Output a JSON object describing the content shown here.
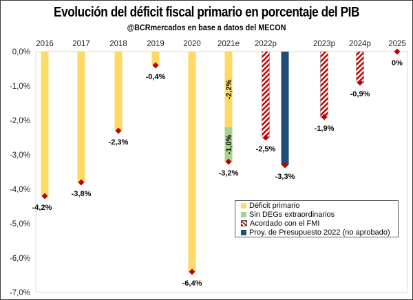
{
  "chart_data": {
    "type": "bar",
    "title": "Evolución del déficit fiscal primario en porcentaje del PIB",
    "subtitle": "@BCRmercados en base a datos del MECON",
    "ylim": [
      -7,
      0
    ],
    "yticks": [
      0,
      -1,
      -2,
      -3,
      -4,
      -5,
      -6,
      -7
    ],
    "ytick_labels": [
      "0,0%",
      "-1,0%",
      "-2,0%",
      "-3,0%",
      "-4,0%",
      "-5,0%",
      "-6,0%",
      "-7,0%"
    ],
    "categories": [
      "2016",
      "2017",
      "2018",
      "2019",
      "2020",
      "2021e",
      "2022p",
      "2023p",
      "2024p",
      "2025"
    ],
    "legend": [
      {
        "name": "Déficit primario",
        "color": "#FFD966",
        "style": "solid"
      },
      {
        "name": "Sin DEGs extraordinarios",
        "color": "#A9D18E",
        "style": "solid"
      },
      {
        "name": "Acordado con el FMI",
        "color": "#C00000",
        "style": "hatched"
      },
      {
        "name": "Proy. de Presupuesto 2022 (no aprobado)",
        "color": "#1F4E79",
        "style": "solid"
      }
    ],
    "legend_position": "bottom-right",
    "series": [
      {
        "name": "Déficit primario",
        "values": [
          -4.2,
          -3.8,
          -2.3,
          -0.4,
          -6.4,
          -2.2,
          null,
          null,
          null,
          null
        ]
      },
      {
        "name": "Sin DEGs extraordinarios",
        "values": [
          null,
          null,
          null,
          null,
          null,
          -1.0,
          null,
          null,
          null,
          null
        ]
      },
      {
        "name": "Acordado con el FMI",
        "values": [
          null,
          null,
          null,
          null,
          null,
          null,
          -2.5,
          -1.9,
          -0.9,
          0
        ]
      },
      {
        "name": "Proy. de Presupuesto 2022 (no aprobado)",
        "values": [
          null,
          null,
          null,
          null,
          null,
          null,
          -3.3,
          null,
          null,
          null
        ]
      }
    ],
    "totals": [
      {
        "category": "2016",
        "value": -4.2,
        "label": "-4,2%"
      },
      {
        "category": "2017",
        "value": -3.8,
        "label": "-3,8%"
      },
      {
        "category": "2018",
        "value": -2.3,
        "label": "-2,3%"
      },
      {
        "category": "2019",
        "value": -0.4,
        "label": "-0,4%"
      },
      {
        "category": "2020",
        "value": -6.4,
        "label": "-6,4%"
      },
      {
        "category": "2021e",
        "value": -3.2,
        "label": "-3,2%"
      },
      {
        "category": "2022p",
        "value": -2.5,
        "label": "-2,5%"
      },
      {
        "category": "2022p",
        "value": -3.3,
        "label": "-3,3%"
      },
      {
        "category": "2023p",
        "value": -1.9,
        "label": "-1,9%"
      },
      {
        "category": "2024p",
        "value": -0.9,
        "label": "-0,9%"
      },
      {
        "category": "2025",
        "value": 0,
        "label": "0%"
      }
    ],
    "inner_labels": [
      {
        "category": "2021e",
        "series": "Déficit primario",
        "label": "-2,2%"
      },
      {
        "category": "2021e",
        "series": "Sin DEGs extraordinarios",
        "label": "-1,0%"
      }
    ],
    "marker_color": "#C00000",
    "grid": false
  }
}
